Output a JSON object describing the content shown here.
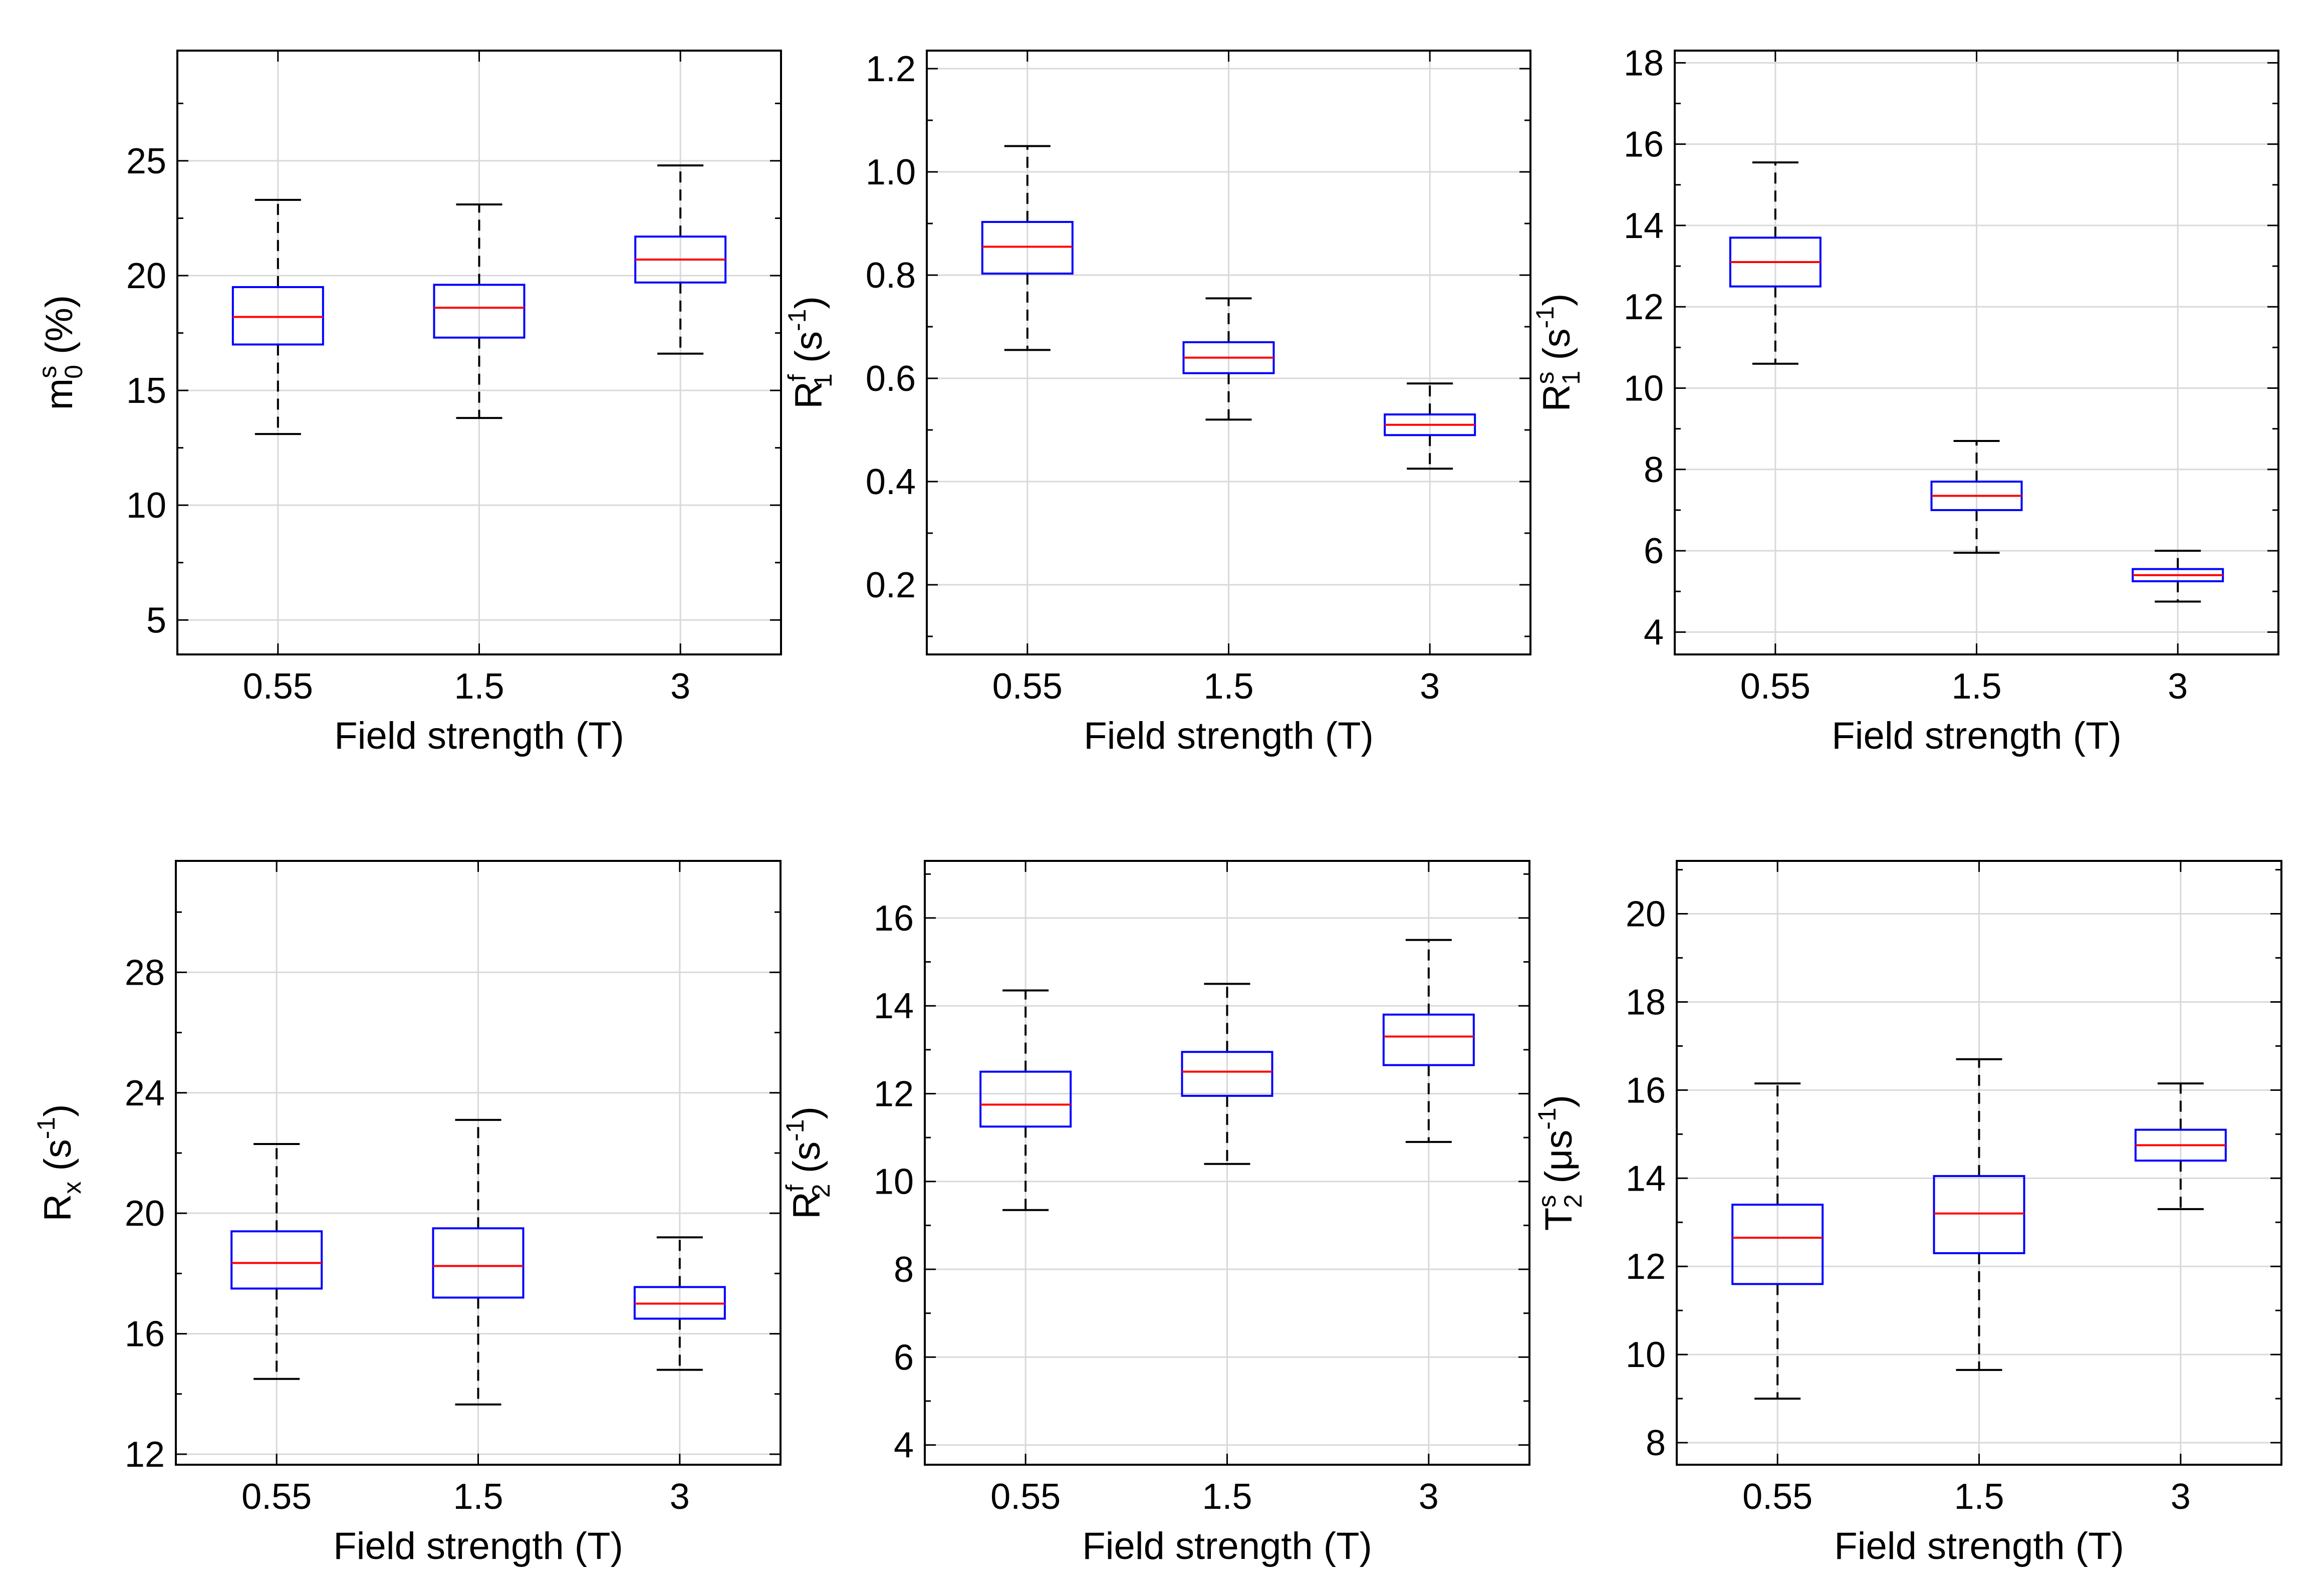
{
  "chart_data": [
    {
      "type": "box",
      "xlabel": "Field strength (T)",
      "ylabel": {
        "base": "m",
        "sub": "0",
        "sup": "s",
        "after": " (%)"
      },
      "categories": [
        "0.55",
        "1.5",
        "3"
      ],
      "ylim": [
        3.5,
        29.8
      ],
      "yticks": [
        5,
        10,
        15,
        20,
        25
      ],
      "minor_yticks": [
        5,
        7.5,
        10,
        12.5,
        15,
        17.5,
        20,
        22.5,
        25,
        27.5
      ],
      "grid": true,
      "boxes": [
        {
          "category": "0.55",
          "whisker_low": 13.1,
          "q1": 17.0,
          "median": 18.2,
          "q3": 19.5,
          "whisker_high": 23.3
        },
        {
          "category": "1.5",
          "whisker_low": 13.8,
          "q1": 17.3,
          "median": 18.6,
          "q3": 19.6,
          "whisker_high": 23.1
        },
        {
          "category": "3",
          "whisker_low": 16.6,
          "q1": 19.7,
          "median": 20.7,
          "q3": 21.7,
          "whisker_high": 24.8
        }
      ]
    },
    {
      "type": "box",
      "xlabel": "Field strength (T)",
      "ylabel": {
        "base": "R",
        "sub": "1",
        "sup": "f",
        "after": " (s",
        "unit_sup": "-1",
        "close": ")"
      },
      "categories": [
        "0.55",
        "1.5",
        "3"
      ],
      "ylim": [
        0.065,
        1.235
      ],
      "yticks": [
        0.2,
        0.4,
        0.6,
        0.8,
        1.0,
        1.2
      ],
      "ytick_labels": [
        "0.2",
        "0.4",
        "0.6",
        "0.8",
        "1.0",
        "1.2"
      ],
      "minor_yticks": [
        0.1,
        0.2,
        0.3,
        0.4,
        0.5,
        0.6,
        0.7,
        0.8,
        0.9,
        1.0,
        1.1,
        1.2
      ],
      "grid": true,
      "boxes": [
        {
          "category": "0.55",
          "whisker_low": 0.655,
          "q1": 0.803,
          "median": 0.855,
          "q3": 0.903,
          "whisker_high": 1.05
        },
        {
          "category": "1.5",
          "whisker_low": 0.52,
          "q1": 0.61,
          "median": 0.64,
          "q3": 0.67,
          "whisker_high": 0.755
        },
        {
          "category": "3",
          "whisker_low": 0.425,
          "q1": 0.49,
          "median": 0.51,
          "q3": 0.53,
          "whisker_high": 0.59
        }
      ]
    },
    {
      "type": "box",
      "xlabel": "Field strength (T)",
      "ylabel": {
        "base": "R",
        "sub": "1",
        "sup": "s",
        "after": " (s",
        "unit_sup": "-1",
        "close": ")"
      },
      "categories": [
        "0.55",
        "1.5",
        "3"
      ],
      "ylim": [
        3.45,
        18.3
      ],
      "yticks": [
        4,
        6,
        8,
        10,
        12,
        14,
        16,
        18
      ],
      "minor_yticks": [
        4,
        5,
        6,
        7,
        8,
        9,
        10,
        11,
        12,
        13,
        14,
        15,
        16,
        17,
        18
      ],
      "grid": true,
      "boxes": [
        {
          "category": "0.55",
          "whisker_low": 10.6,
          "q1": 12.5,
          "median": 13.1,
          "q3": 13.7,
          "whisker_high": 15.55
        },
        {
          "category": "1.5",
          "whisker_low": 5.95,
          "q1": 7.0,
          "median": 7.35,
          "q3": 7.7,
          "whisker_high": 8.7
        },
        {
          "category": "3",
          "whisker_low": 4.75,
          "q1": 5.25,
          "median": 5.4,
          "q3": 5.55,
          "whisker_high": 6.0
        }
      ]
    },
    {
      "type": "box",
      "xlabel": "Field strength (T)",
      "ylabel": {
        "base": "R",
        "sub": "x",
        "sup": "",
        "after": " (s",
        "unit_sup": "-1",
        "close": ")"
      },
      "categories": [
        "0.55",
        "1.5",
        "3"
      ],
      "ylim": [
        11.65,
        31.7
      ],
      "yticks": [
        12,
        16,
        20,
        24,
        28
      ],
      "minor_yticks": [
        12,
        14,
        16,
        18,
        20,
        22,
        24,
        26,
        28,
        30
      ],
      "grid": true,
      "boxes": [
        {
          "category": "0.55",
          "whisker_low": 14.5,
          "q1": 17.5,
          "median": 18.35,
          "q3": 19.4,
          "whisker_high": 22.3
        },
        {
          "category": "1.5",
          "whisker_low": 13.65,
          "q1": 17.2,
          "median": 18.25,
          "q3": 19.5,
          "whisker_high": 23.1
        },
        {
          "category": "3",
          "whisker_low": 14.8,
          "q1": 16.5,
          "median": 17.0,
          "q3": 17.55,
          "whisker_high": 19.2
        }
      ]
    },
    {
      "type": "box",
      "xlabel": "Field strength (T)",
      "ylabel": {
        "base": "R",
        "sub": "2",
        "sup": "f",
        "after": " (s",
        "unit_sup": "-1",
        "close": ")"
      },
      "categories": [
        "0.55",
        "1.5",
        "3"
      ],
      "ylim": [
        3.55,
        17.3
      ],
      "yticks": [
        4,
        6,
        8,
        10,
        12,
        14,
        16
      ],
      "minor_yticks": [
        4,
        5,
        6,
        7,
        8,
        9,
        10,
        11,
        12,
        13,
        14,
        15,
        16,
        17
      ],
      "grid": true,
      "boxes": [
        {
          "category": "0.55",
          "whisker_low": 9.35,
          "q1": 11.25,
          "median": 11.75,
          "q3": 12.5,
          "whisker_high": 14.35
        },
        {
          "category": "1.5",
          "whisker_low": 10.4,
          "q1": 11.95,
          "median": 12.5,
          "q3": 12.95,
          "whisker_high": 14.5
        },
        {
          "category": "3",
          "whisker_low": 10.9,
          "q1": 12.65,
          "median": 13.3,
          "q3": 13.8,
          "whisker_high": 15.5
        }
      ]
    },
    {
      "type": "box",
      "xlabel": "Field strength (T)",
      "ylabel": {
        "base": "T",
        "sub": "2",
        "sup": "s",
        "after": " (μs",
        "unit_sup": "-1",
        "close": ")"
      },
      "categories": [
        "0.55",
        "1.5",
        "3"
      ],
      "ylim": [
        7.5,
        21.2
      ],
      "yticks": [
        8,
        10,
        12,
        14,
        16,
        18,
        20
      ],
      "minor_yticks": [
        8,
        9,
        10,
        11,
        12,
        13,
        14,
        15,
        16,
        17,
        18,
        19,
        20,
        21
      ],
      "grid": true,
      "boxes": [
        {
          "category": "0.55",
          "whisker_low": 9.0,
          "q1": 11.6,
          "median": 12.65,
          "q3": 13.4,
          "whisker_high": 16.15
        },
        {
          "category": "1.5",
          "whisker_low": 9.65,
          "q1": 12.3,
          "median": 13.2,
          "q3": 14.05,
          "whisker_high": 16.7
        },
        {
          "category": "3",
          "whisker_low": 13.3,
          "q1": 14.4,
          "median": 14.75,
          "q3": 15.1,
          "whisker_high": 16.15
        }
      ]
    }
  ],
  "colors": {
    "box": "#0000ff",
    "median": "#ff0000",
    "whisker": "#000000",
    "grid": "#d9d9d9",
    "axis": "#000000"
  }
}
